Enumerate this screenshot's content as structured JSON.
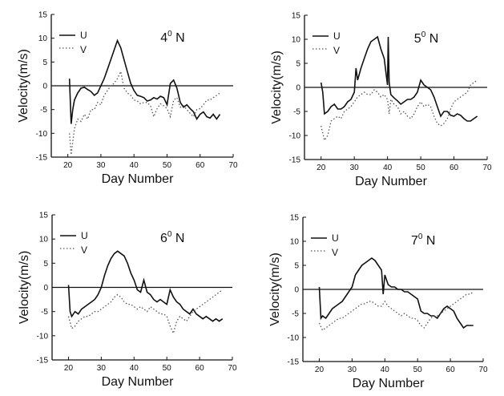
{
  "chart_data": [
    {
      "type": "line",
      "label_base": "4",
      "label_sup": "0",
      "label_suffix": " N",
      "xlabel": "Day Number",
      "ylabel": "Velocity(m/s)",
      "xlim": [
        15,
        70
      ],
      "ylim": [
        -15,
        15
      ],
      "xticks": [
        20,
        30,
        40,
        50,
        60,
        70
      ],
      "yticks": [
        -15,
        -10,
        -5,
        0,
        5,
        10,
        15
      ],
      "series": [
        {
          "name": "U",
          "x": [
            20.5,
            21,
            21.5,
            22,
            23,
            24,
            25,
            26,
            27,
            28,
            29,
            30,
            31,
            32,
            33,
            34,
            35,
            36,
            37,
            38,
            39,
            40,
            41,
            42,
            43,
            44,
            45,
            46,
            47,
            48,
            49,
            50,
            51,
            52,
            53,
            54,
            55,
            56,
            57,
            58,
            59,
            60,
            61,
            62,
            63,
            64,
            65,
            66
          ],
          "y": [
            1.5,
            -8,
            -5,
            -3,
            -1.5,
            -0.5,
            -0.3,
            -0.8,
            -1.2,
            -2,
            -1.5,
            0,
            1.5,
            3.5,
            5.5,
            7.5,
            9.5,
            8,
            5.5,
            3,
            0.5,
            -1,
            -2,
            -2.2,
            -2.5,
            -3.2,
            -3,
            -2.5,
            -2.8,
            -2.2,
            -2.5,
            -4,
            0.5,
            1.2,
            -0.5,
            -3.5,
            -4.5,
            -4,
            -4.8,
            -5.5,
            -7,
            -6,
            -5.5,
            -6.5,
            -6.8,
            -6,
            -7,
            -6
          ]
        },
        {
          "name": "V",
          "x": [
            20.5,
            21,
            22,
            23,
            24,
            25,
            26,
            27,
            28,
            29,
            30,
            31,
            32,
            33,
            34,
            35,
            36,
            37,
            38,
            39,
            40,
            41,
            42,
            43,
            44,
            45,
            46,
            47,
            48,
            49,
            50,
            51,
            52,
            53,
            54,
            55,
            56,
            57,
            58,
            59,
            60,
            61,
            62,
            63,
            64,
            65,
            66
          ],
          "y": [
            -10,
            -14.5,
            -9,
            -7,
            -7.5,
            -6,
            -7,
            -5,
            -5,
            -3.5,
            -4,
            -2,
            -1,
            0,
            0.5,
            1.5,
            3,
            -0.5,
            -1.5,
            -2,
            -3,
            -3.2,
            -3.8,
            -3.5,
            -3.5,
            -4.2,
            -6.5,
            -4.8,
            -3.8,
            -4.2,
            -4.8,
            -6.5,
            -3,
            -2.5,
            -4.5,
            -4.2,
            -5,
            -5.8,
            -6.5,
            -5,
            -4.8,
            -4,
            -3,
            -3,
            -2.5,
            -2,
            -1.5
          ]
        }
      ]
    },
    {
      "type": "line",
      "label_base": "5",
      "label_sup": "0",
      "label_suffix": " N",
      "xlabel": "Day Number",
      "ylabel": "Velocity(m/s)",
      "xlim": [
        15,
        70
      ],
      "ylim": [
        -15,
        15
      ],
      "xticks": [
        20,
        30,
        40,
        50,
        60,
        70
      ],
      "yticks": [
        -15,
        -10,
        -5,
        0,
        5,
        10,
        15
      ],
      "series": [
        {
          "name": "U",
          "x": [
            20,
            20.5,
            21,
            22,
            23,
            24,
            25,
            26,
            27,
            28,
            29,
            30,
            30.5,
            31,
            32,
            33,
            34,
            35,
            36,
            37,
            38,
            39,
            40,
            40.2,
            40.5,
            41,
            42,
            43,
            44,
            45,
            46,
            47,
            48,
            49,
            50,
            51,
            52,
            53,
            54,
            55,
            56,
            57,
            58,
            59,
            60,
            61,
            62,
            63,
            64,
            65,
            66,
            67
          ],
          "y": [
            1,
            -1,
            -5.5,
            -5,
            -4,
            -3.5,
            -4.5,
            -4.5,
            -4,
            -3,
            -2.5,
            -1,
            4,
            1.5,
            4,
            6,
            8,
            9.5,
            10,
            10.5,
            8,
            6,
            0.5,
            10.5,
            1,
            -1.5,
            -2.2,
            -2.8,
            -3.5,
            -3,
            -2.5,
            -2.5,
            -2,
            -1,
            1.5,
            0.5,
            0,
            -0.5,
            -2,
            -4,
            -6,
            -5,
            -5,
            -5.8,
            -6,
            -5.5,
            -5.8,
            -6.5,
            -7,
            -7,
            -6.5,
            -6
          ]
        },
        {
          "name": "V",
          "x": [
            20,
            21,
            22,
            23,
            24,
            25,
            26,
            27,
            28,
            29,
            30,
            31,
            32,
            33,
            34,
            35,
            36,
            37,
            38,
            39,
            40,
            40.5,
            41,
            42,
            43,
            44,
            45,
            46,
            47,
            48,
            49,
            50,
            51,
            52,
            53,
            54,
            55,
            56,
            57,
            58,
            59,
            60,
            61,
            62,
            63,
            64,
            65,
            66,
            67
          ],
          "y": [
            -8,
            -11,
            -10,
            -7,
            -6.5,
            -6,
            -6.5,
            -5,
            -4.5,
            -4,
            -3,
            -2,
            -1.5,
            -1,
            -1.5,
            -1.5,
            -0.5,
            -1,
            -2,
            -1.5,
            -2.5,
            -5.5,
            -2.5,
            -3.5,
            -4,
            -5.5,
            -5,
            -6,
            -6.5,
            -5.5,
            -4,
            -3,
            -4,
            -3.5,
            -4,
            -6,
            -7.5,
            -8,
            -7.5,
            -6.5,
            -4.5,
            -3,
            -2.5,
            -2,
            -1.5,
            -1,
            0.5,
            1,
            1.5
          ]
        }
      ]
    },
    {
      "type": "line",
      "label_base": "6",
      "label_sup": "0",
      "label_suffix": " N",
      "xlabel": "Day Number",
      "ylabel": "Velocity(m/s)",
      "xlim": [
        15,
        70
      ],
      "ylim": [
        -15,
        15
      ],
      "xticks": [
        20,
        30,
        40,
        50,
        60,
        70
      ],
      "yticks": [
        -15,
        -10,
        -5,
        0,
        5,
        10,
        15
      ],
      "series": [
        {
          "name": "U",
          "x": [
            20,
            20.5,
            21,
            22,
            23,
            24,
            25,
            26,
            27,
            28,
            29,
            30,
            31,
            32,
            33,
            34,
            35,
            36,
            37,
            38,
            39,
            40,
            41,
            42,
            43,
            44,
            45,
            46,
            47,
            48,
            49,
            50,
            51,
            52,
            53,
            54,
            55,
            56,
            57,
            58,
            59,
            60,
            61,
            62,
            63,
            64,
            65,
            66,
            67
          ],
          "y": [
            0.5,
            -5,
            -6,
            -5,
            -5.5,
            -4.5,
            -4,
            -3.5,
            -3,
            -2.5,
            -1.5,
            0,
            2.5,
            4.5,
            6,
            7,
            7.5,
            7,
            6.5,
            5,
            3,
            1.5,
            -0.5,
            -1,
            1.5,
            -1,
            -1.5,
            -2.5,
            -3,
            -2.5,
            -3,
            -3.5,
            -0.5,
            -2,
            -3,
            -3.5,
            -4.5,
            -5,
            -5.5,
            -4.5,
            -5.5,
            -6,
            -6.5,
            -6,
            -6.5,
            -7,
            -6.5,
            -7,
            -6.5
          ]
        },
        {
          "name": "V",
          "x": [
            20,
            21,
            22,
            23,
            24,
            25,
            26,
            27,
            28,
            29,
            30,
            31,
            32,
            33,
            34,
            35,
            36,
            37,
            38,
            39,
            40,
            41,
            42,
            43,
            44,
            45,
            46,
            47,
            48,
            49,
            50,
            51,
            52,
            53,
            54,
            55,
            56,
            57,
            58,
            59,
            60,
            61,
            62,
            63,
            64,
            65,
            66,
            67
          ],
          "y": [
            -6,
            -8.5,
            -8,
            -7,
            -6.5,
            -6,
            -6,
            -5.5,
            -5,
            -5,
            -4.5,
            -4,
            -3.5,
            -3,
            -2,
            -1.5,
            -2,
            -3,
            -3.5,
            -3.5,
            -4,
            -4.5,
            -4,
            -4.5,
            -5,
            -4,
            -4.5,
            -5,
            -5.5,
            -5.5,
            -6,
            -8,
            -9.5,
            -7,
            -6,
            -6.5,
            -7,
            -6,
            -5,
            -4.5,
            -4,
            -3.5,
            -3,
            -2.5,
            -2,
            -1.5,
            -1,
            -0.5
          ]
        }
      ]
    },
    {
      "type": "line",
      "label_base": "7",
      "label_sup": "0",
      "label_suffix": " N",
      "xlabel": "Day Number",
      "ylabel": "Velocity(m/s)",
      "xlim": [
        15,
        70
      ],
      "ylim": [
        -15,
        15
      ],
      "xticks": [
        20,
        30,
        40,
        50,
        60,
        70
      ],
      "yticks": [
        -15,
        -10,
        -5,
        0,
        5,
        10,
        15
      ],
      "series": [
        {
          "name": "U",
          "x": [
            20,
            20.5,
            21,
            22,
            23,
            24,
            25,
            26,
            27,
            28,
            29,
            30,
            31,
            32,
            33,
            34,
            35,
            36,
            37,
            38,
            39,
            39.5,
            40,
            41,
            42,
            43,
            44,
            45,
            46,
            47,
            48,
            49,
            50,
            51,
            52,
            53,
            54,
            55,
            56,
            57,
            58,
            59,
            60,
            61,
            62,
            63,
            64,
            65,
            66,
            67
          ],
          "y": [
            0.5,
            -6,
            -5.5,
            -6,
            -5,
            -4,
            -3.5,
            -3,
            -2.5,
            -1.5,
            -0.5,
            0.5,
            3,
            4,
            5,
            5.5,
            6,
            6.5,
            6,
            5,
            4,
            -1,
            3,
            1,
            0.5,
            0.5,
            0,
            0,
            -0.5,
            -0.5,
            -1,
            -1.5,
            -2,
            -4.5,
            -5,
            -5,
            -5.5,
            -5.5,
            -6,
            -5,
            -4,
            -3.5,
            -4,
            -4.5,
            -6,
            -7,
            -8,
            -7.5,
            -7.5,
            -7.5
          ]
        },
        {
          "name": "V",
          "x": [
            20,
            21,
            22,
            23,
            24,
            25,
            26,
            27,
            28,
            29,
            30,
            31,
            32,
            33,
            34,
            35,
            36,
            37,
            38,
            39,
            40,
            41,
            42,
            43,
            44,
            45,
            46,
            47,
            48,
            49,
            50,
            51,
            52,
            53,
            54,
            55,
            56,
            57,
            58,
            59,
            60,
            61,
            62,
            63,
            64,
            65,
            66,
            67
          ],
          "y": [
            -7,
            -8.5,
            -8,
            -7.5,
            -7,
            -6.5,
            -6,
            -6,
            -5.5,
            -5,
            -4.5,
            -4,
            -3.5,
            -3,
            -3,
            -2.5,
            -2.5,
            -3,
            -3.5,
            -3.5,
            -2.5,
            -3.5,
            -4,
            -4.5,
            -5,
            -5.5,
            -5,
            -5.5,
            -6,
            -6,
            -6.5,
            -7.5,
            -8,
            -7,
            -6,
            -5.5,
            -5.5,
            -5,
            -4.5,
            -4,
            -3.5,
            -3,
            -2.5,
            -2,
            -1.5,
            -1,
            -1,
            -0.5
          ]
        }
      ]
    }
  ]
}
